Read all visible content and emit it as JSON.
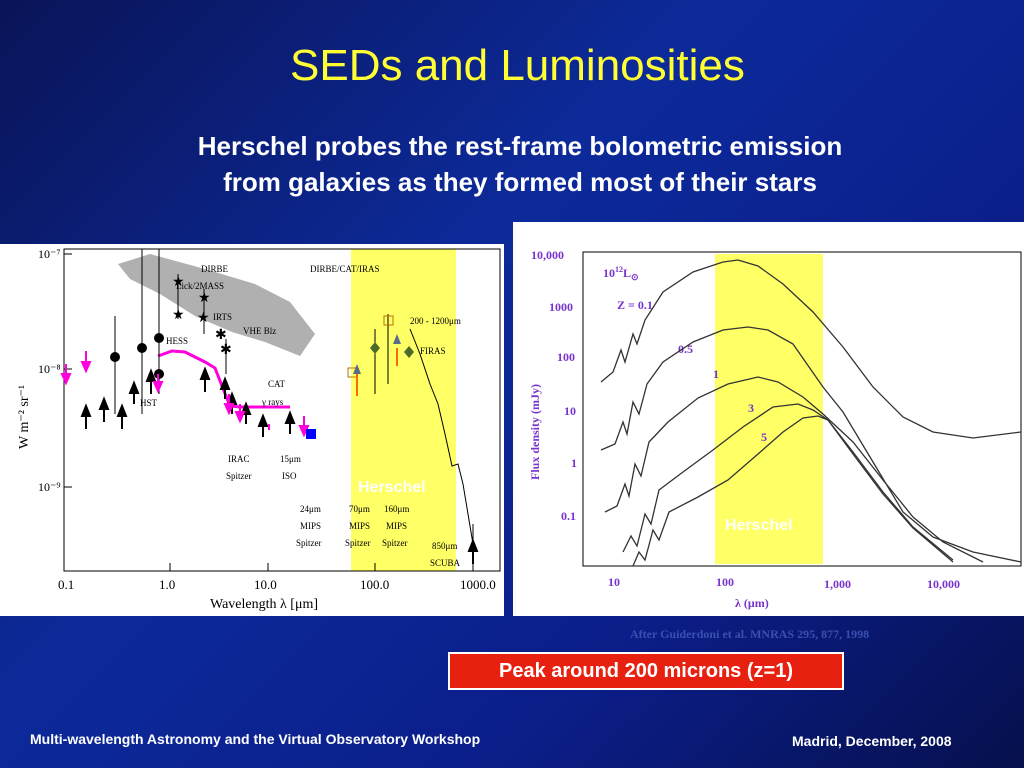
{
  "slide": {
    "title": "SEDs and Luminosities",
    "subtitle_line1": "Herschel probes the rest-frame bolometric emission",
    "subtitle_line2": "from galaxies as they formed most of their stars",
    "credit": "After Guiderdoni et al. MNRAS 295, 877, 1998",
    "highlight": "Peak around 200 microns (z=1)",
    "footer_left": "Multi-wavelength Astronomy and the Virtual Observatory Workshop",
    "footer_right": "Madrid, December, 2008",
    "colors": {
      "title": "#ffff33",
      "highlight_box": "#e8200f",
      "herschel_band": "#ffff66",
      "background": "#0c2a9a"
    }
  },
  "left_figure": {
    "ylabel": "W m⁻² sr⁻¹",
    "xlabel": "Wavelength λ [μm]",
    "y_ticks": [
      "10⁻⁷",
      "10⁻⁸",
      "10⁻⁹"
    ],
    "x_ticks": [
      "0.1",
      "1.0",
      "10.0",
      "100.0",
      "1000.0"
    ],
    "band_label": "Herschel",
    "annotations": {
      "dirbe": "DIRBE",
      "lick": "Lick/2MASS",
      "irts": "IRTS",
      "vhe": "VHE Blz",
      "hess": "HESS",
      "hst": "HST",
      "dirbe_cat": "DIRBE/CAT/IRAS",
      "range": "200 - 1200μm",
      "firas": "FIRAS",
      "cat": "CAT",
      "grays": "γ rays",
      "irac": "IRAC",
      "spitzer": "Spitzer",
      "iso15": "15μm",
      "iso": "ISO",
      "m24": "24μm",
      "m70": "70μm",
      "m160": "160μm",
      "mips": "MIPS",
      "scuba850": "850μm",
      "scuba": "SCUBA"
    }
  },
  "right_figure": {
    "ylabel": "Flux density  (mJy)",
    "xlabel": "λ  (μm)",
    "y_ticks": [
      "10,000",
      "1000",
      "100",
      "10",
      "1",
      "0.1"
    ],
    "x_ticks": [
      "10",
      "100",
      "1,000",
      "10,000"
    ],
    "lum_base": "10",
    "lum_exp": "12",
    "lum_unit": "L",
    "sun_symbol": "⊙",
    "band_label": "Herschel",
    "redshift_labels": [
      "Z = 0.1",
      "0.5",
      "1",
      "3",
      "5"
    ]
  }
}
